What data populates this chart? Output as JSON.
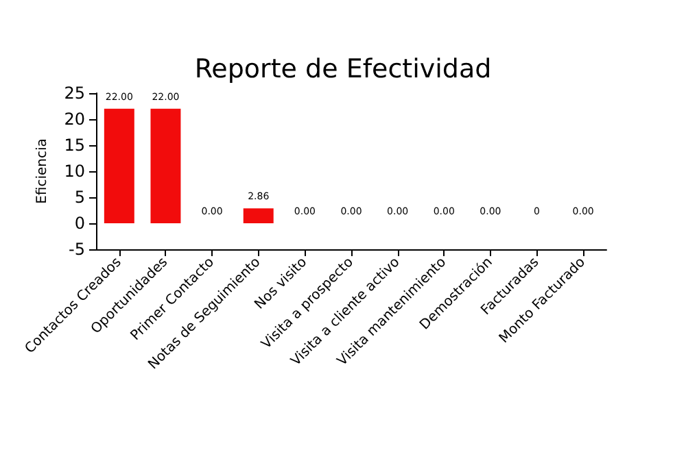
{
  "chart_data": {
    "type": "bar",
    "title": "Reporte de Efectividad",
    "ylabel": "Eficiencia",
    "categories": [
      "Contactos Creados",
      "Oportunidades",
      "Primer Contacto",
      "Notas de Seguimiento",
      "Nos visito",
      "Visita a prospecto",
      "Visita a cliente activo",
      "Visita mantenimiento",
      "Demostración",
      "Facturadas",
      "Monto Facturado"
    ],
    "values": [
      22,
      22,
      0,
      2.86,
      0,
      0,
      0,
      0,
      0,
      0,
      0
    ],
    "value_labels": [
      "22.00",
      "22.00",
      "0.00",
      "2.86",
      "0.00",
      "0.00",
      "0.00",
      "0.00",
      "0.00",
      "0",
      "0.00"
    ],
    "color": "#f20c0c",
    "ylim": [
      -5,
      25
    ],
    "yticks": [
      -5,
      0,
      5,
      10,
      15,
      20,
      25
    ],
    "grid": false
  }
}
